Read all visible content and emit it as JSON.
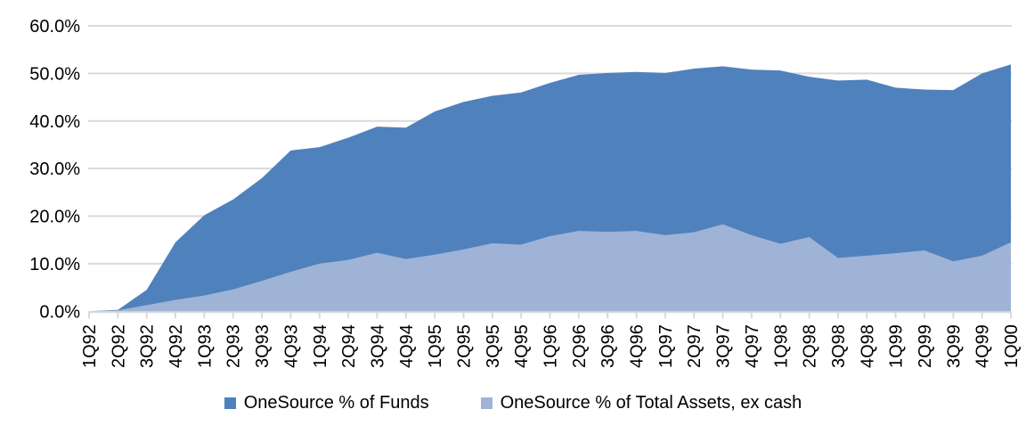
{
  "chart_data": {
    "type": "area",
    "title": "",
    "categories": [
      "1Q92",
      "2Q92",
      "3Q92",
      "4Q92",
      "1Q93",
      "2Q93",
      "3Q93",
      "4Q93",
      "1Q94",
      "2Q94",
      "3Q94",
      "4Q94",
      "1Q95",
      "2Q95",
      "3Q95",
      "4Q95",
      "1Q96",
      "2Q96",
      "3Q96",
      "4Q96",
      "1Q97",
      "2Q97",
      "3Q97",
      "4Q97",
      "1Q98",
      "2Q98",
      "3Q98",
      "4Q98",
      "1Q99",
      "2Q99",
      "3Q99",
      "4Q99",
      "1Q00"
    ],
    "series": [
      {
        "name": "OneSource % of Funds",
        "color": "#4F81BD",
        "values": [
          0.0,
          0.3,
          4.5,
          14.5,
          20.2,
          23.5,
          28.0,
          33.8,
          34.5,
          36.5,
          38.8,
          38.6,
          42.0,
          44.0,
          45.3,
          46.0,
          48.0,
          49.7,
          50.1,
          50.3,
          50.1,
          51.0,
          51.5,
          50.8,
          50.6,
          49.3,
          48.5,
          48.7,
          47.0,
          46.6,
          46.5,
          50.0,
          51.9
        ]
      },
      {
        "name": "OneSource % of Total Assets, ex cash",
        "color": "#9EB3D6",
        "values": [
          0.0,
          0.2,
          1.3,
          2.4,
          3.3,
          4.6,
          6.4,
          8.3,
          10.0,
          10.8,
          12.3,
          11.0,
          11.9,
          13.0,
          14.3,
          14.0,
          15.8,
          16.9,
          16.7,
          16.9,
          16.0,
          16.6,
          18.3,
          16.0,
          14.2,
          15.6,
          11.2,
          11.7,
          12.2,
          12.8,
          10.5,
          11.7,
          14.5
        ]
      }
    ],
    "xlabel": "",
    "ylabel": "",
    "ylim": [
      0,
      60
    ],
    "ytick_labels": [
      "0.0%",
      "10.0%",
      "20.0%",
      "30.0%",
      "40.0%",
      "50.0%",
      "60.0%"
    ],
    "ytick_values": [
      0,
      10,
      20,
      30,
      40,
      50,
      60
    ],
    "grid": "horizontal",
    "legend_position": "bottom",
    "x_labels_rotated_degrees": 90
  },
  "colors": {
    "background": "#FFFFFF",
    "gridline": "#D9D9D9",
    "axis": "#D9D9D9",
    "tick": "#D9D9D9",
    "label_text": "#000000",
    "series_funds": "#4F81BD",
    "series_assets": "#9EB3D6"
  }
}
